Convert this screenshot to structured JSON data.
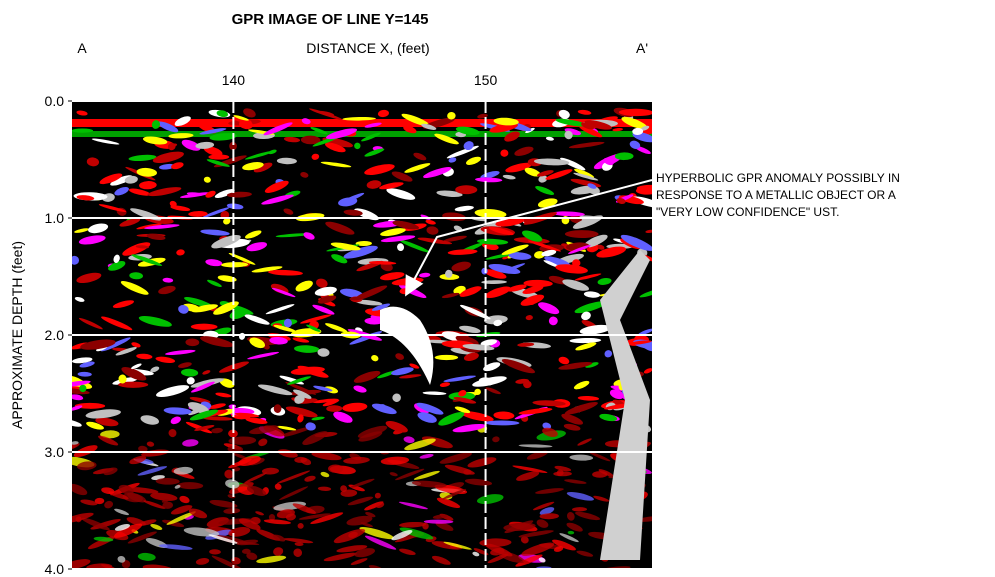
{
  "chart_data": {
    "type": "image",
    "title": "GPR IMAGE OF LINE Y=145",
    "x_label": "DISTANCE X, (feet)",
    "y_label": "APPROXIMATE DEPTH (feet)",
    "start_marker": "A",
    "end_marker": "A'",
    "xlim": [
      133.6,
      156.6
    ],
    "xticks": [
      140,
      150
    ],
    "ylim": [
      4.0,
      0.0
    ],
    "yticks": [
      {
        "value": 0,
        "label": "0.0"
      },
      {
        "value": 1,
        "label": "1.0"
      },
      {
        "value": 2,
        "label": "2.0"
      },
      {
        "value": 3,
        "label": "3.0"
      },
      {
        "value": 4,
        "label": "4.0"
      }
    ],
    "grid": true,
    "annotation": [
      "HYPERBOLIC GPR ANOMALY POSSIBLY IN",
      "RESPONSE TO A METALLIC OBJECT OR A",
      "\"VERY LOW CONFIDENCE\" UST."
    ]
  }
}
